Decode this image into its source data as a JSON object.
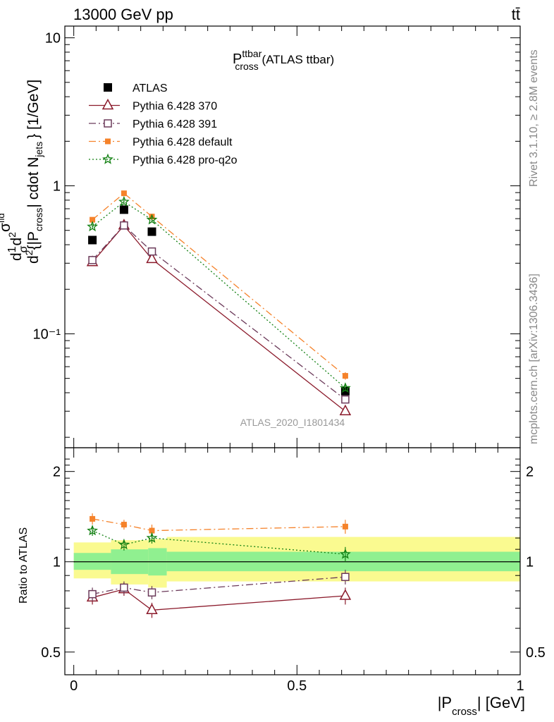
{
  "header": {
    "energy_label": "13000 GeV pp",
    "process_label": "tt̄"
  },
  "side_labels": {
    "rivet": "Rivet 3.1.10, ≥ 2.8M events",
    "mcplots": "mcplots.cern.ch [arXiv:1306.3436]"
  },
  "colors": {
    "ATLAS": "#000000",
    "Pythia 6.428 370": "#8b1a2b",
    "Pythia 6.428 391": "#6b3a5a",
    "Pythia 6.428 default": "#f5822a",
    "Pythia 6.428 pro-q2o": "#128012",
    "band_inner": "#90f090",
    "band_outer": "#fafa90"
  },
  "chart_data": [
    {
      "type": "line",
      "title": "P_cross^ttbar (ATLAS ttbar)",
      "title_main": "P",
      "title_sup": "ttbar",
      "title_sub": "cross",
      "title_rest": " (ATLAS ttbar)",
      "analysis_label": "ATLAS_2020_I1801434",
      "ylabel": "d²σ/d²{|P_cross| cdot N_jets} [1/GeV]",
      "ylabel_parts": {
        "prefix": "d",
        "frac1": "1",
        "frac1_den": "σ",
        "d2": "d",
        "sup2": "2",
        "sigma_tid": "σ",
        "tid": "fid",
        "denom_pre": "d",
        "denom_p": "{|P",
        "denom_sub": "cross",
        "denom_mid": "| cdot N",
        "denom_sub2": "jets",
        "suffix": "} [1/GeV]"
      },
      "yscale": "log",
      "ylim": [
        0.017,
        12
      ],
      "xlim": [
        -0.02,
        1.0
      ],
      "y_ticks": [
        "10⁻¹",
        "1",
        "10"
      ],
      "legend_position": "top-left",
      "series": [
        {
          "name": "ATLAS",
          "marker": "square-filled",
          "line": "none",
          "x": [
            0.0417,
            0.1125,
            0.175,
            0.6083
          ],
          "y": [
            0.43,
            0.69,
            0.49,
            0.041
          ]
        },
        {
          "name": "Pythia 6.428 370",
          "marker": "triangle-open",
          "line": "solid",
          "x": [
            0.0417,
            0.1125,
            0.175,
            0.6083
          ],
          "y": [
            0.305,
            0.54,
            0.32,
            0.03
          ],
          "err": [
            0.01,
            0.02,
            0.015,
            0.0015
          ]
        },
        {
          "name": "Pythia 6.428 391",
          "marker": "square-open",
          "line": "dashdot",
          "x": [
            0.0417,
            0.1125,
            0.175,
            0.6083
          ],
          "y": [
            0.315,
            0.54,
            0.36,
            0.036
          ],
          "err": [
            0.01,
            0.02,
            0.015,
            0.0015
          ]
        },
        {
          "name": "Pythia 6.428 default",
          "marker": "square-filled-small",
          "line": "dashdot",
          "x": [
            0.0417,
            0.1125,
            0.175,
            0.6083
          ],
          "y": [
            0.59,
            0.89,
            0.62,
            0.052
          ],
          "err": [
            0.02,
            0.03,
            0.02,
            0.003
          ]
        },
        {
          "name": "Pythia 6.428 pro-q2o",
          "marker": "star",
          "line": "dotted",
          "x": [
            0.0417,
            0.1125,
            0.175,
            0.6083
          ],
          "y": [
            0.53,
            0.78,
            0.59,
            0.043
          ],
          "err": [
            0.02,
            0.03,
            0.02,
            0.002
          ]
        }
      ]
    },
    {
      "type": "line",
      "ylabel": "Ratio to ATLAS",
      "xlabel": "|P_cross| [GeV]",
      "xlabel_parts": {
        "pre": "|P",
        "sub": "cross",
        "post": "| [GeV]"
      },
      "yscale": "log",
      "ylim": [
        0.42,
        2.4
      ],
      "xlim": [
        -0.02,
        1.0
      ],
      "y_ticks": [
        "0.5",
        "1",
        "2"
      ],
      "x_ticks": [
        "0",
        "0.5",
        "1"
      ],
      "band": {
        "edges": [
          0,
          0.0833,
          0.1667,
          0.2083,
          1.0
        ],
        "inner_lo": [
          0.94,
          0.91,
          0.9,
          0.93
        ],
        "inner_hi": [
          1.07,
          1.1,
          1.11,
          1.08
        ],
        "outer_lo": [
          0.88,
          0.84,
          0.82,
          0.86
        ],
        "outer_hi": [
          1.16,
          1.18,
          1.19,
          1.21
        ]
      },
      "series": [
        {
          "name": "Pythia 6.428 370",
          "x": [
            0.0417,
            0.1125,
            0.175,
            0.6083
          ],
          "y": [
            0.76,
            0.81,
            0.69,
            0.77
          ],
          "err": [
            0.04,
            0.04,
            0.04,
            0.05
          ]
        },
        {
          "name": "Pythia 6.428 391",
          "x": [
            0.0417,
            0.1125,
            0.175,
            0.6083
          ],
          "y": [
            0.78,
            0.82,
            0.79,
            0.89
          ],
          "err": [
            0.04,
            0.04,
            0.04,
            0.05
          ]
        },
        {
          "name": "Pythia 6.428 default",
          "x": [
            0.0417,
            0.1125,
            0.175,
            0.6083
          ],
          "y": [
            1.39,
            1.33,
            1.27,
            1.31
          ],
          "err": [
            0.06,
            0.05,
            0.06,
            0.07
          ]
        },
        {
          "name": "Pythia 6.428 pro-q2o",
          "x": [
            0.0417,
            0.1125,
            0.175,
            0.6083
          ],
          "y": [
            1.27,
            1.14,
            1.2,
            1.06
          ],
          "err": [
            0.05,
            0.05,
            0.05,
            0.06
          ]
        }
      ]
    }
  ]
}
